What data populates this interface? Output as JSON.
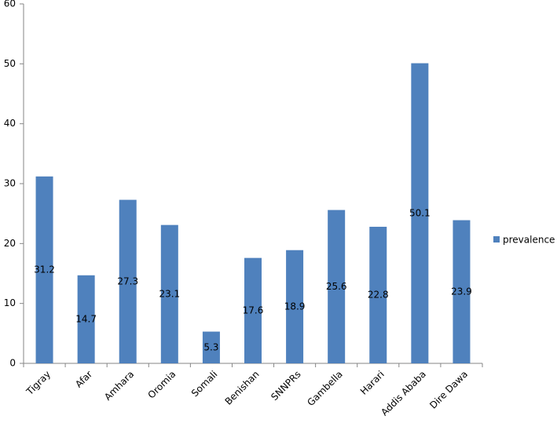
{
  "chart_data": {
    "type": "bar",
    "categories": [
      "Tigray",
      "Afar",
      "Amhara",
      "Oromia",
      "Somali",
      "Benishan",
      "SNNPRs",
      "Gambella",
      "Harari",
      "Addis Ababa",
      "Dire Dawa"
    ],
    "series": [
      {
        "name": "prevalence",
        "color": "#4f81bd",
        "values": [
          31.2,
          14.7,
          27.3,
          23.1,
          5.3,
          17.6,
          18.9,
          25.6,
          22.8,
          50.1,
          23.9
        ]
      }
    ],
    "ylim": [
      0,
      60
    ],
    "yticks": [
      0,
      10,
      20,
      30,
      40,
      50,
      60
    ],
    "grid": false,
    "legend": "right",
    "data_labels": true
  }
}
